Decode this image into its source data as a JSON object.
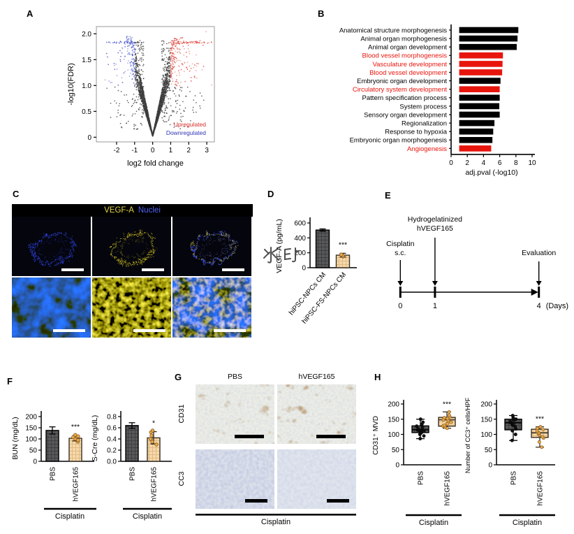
{
  "watermark": "水印",
  "panels": {
    "A": {
      "label": "A"
    },
    "B": {
      "label": "B"
    },
    "C": {
      "label": "C",
      "header_marker": "VEGF-A",
      "header_counter": "Nuclei",
      "marker_color": "#e3d44b",
      "counter_color": "#4f63f2"
    },
    "D": {
      "label": "D"
    },
    "E": {
      "label": "E"
    },
    "F": {
      "label": "F"
    },
    "G": {
      "label": "G",
      "columns": [
        "PBS",
        "hVEGF165"
      ],
      "rows": [
        "CD31",
        "CC3"
      ],
      "group_label": "Cisplatin"
    },
    "H": {
      "label": "H"
    }
  },
  "chart_data": [
    {
      "id": "volcano",
      "type": "scatter",
      "xlabel": "log2 fold change",
      "ylabel": "-log10(FDR)",
      "xlim": [
        -3.12,
        3.42
      ],
      "ylim": [
        0,
        2.1
      ],
      "xticks": [
        "-2",
        "-1",
        "0",
        "1",
        "2",
        "3"
      ],
      "yticks": [
        "0",
        "0.5",
        "1.0",
        "1.5",
        "2.0"
      ],
      "legend": [
        {
          "label": "Upregulated",
          "color": "#d62f28"
        },
        {
          "label": "Downregulated",
          "color": "#2e36b4"
        }
      ],
      "point_color": "#3d3d3d",
      "up_threshold_log2fc": 1,
      "down_threshold_log2fc": -1,
      "sig_threshold_y": 1.0
    },
    {
      "id": "go_terms",
      "type": "bar",
      "orientation": "horizontal",
      "xlabel": "adj.pval (-log10)",
      "xticks": [
        0,
        2,
        4,
        6,
        8,
        10
      ],
      "xlim": [
        0,
        10
      ],
      "bar_start": 1,
      "categories": [
        "Anatomical structure morphogenesis",
        "Animal organ morphogenesis",
        "Animal organ development",
        "Blood vessel morphogenesis",
        "Vasculature development",
        "Blood vessel development",
        "Embryonic organ development",
        "Circulatory system development",
        "Pattern specification process",
        "System process",
        "Sensory organ development",
        "Regionalization",
        "Response to hypoxia",
        "Embryonic organ morphogenesis",
        "Angiogenesis"
      ],
      "values": [
        8.3,
        8.2,
        8.1,
        6.4,
        6.35,
        6.3,
        6.1,
        6.0,
        6.0,
        5.95,
        6.0,
        5.35,
        5.2,
        5.1,
        4.95
      ],
      "highlighted": [
        false,
        false,
        false,
        true,
        true,
        true,
        false,
        true,
        false,
        false,
        false,
        false,
        false,
        false,
        true
      ],
      "bar_color": "#000000",
      "highlight_color": "#e8150d"
    },
    {
      "id": "vegfa_elisa",
      "type": "bar",
      "ylabel": "VEGF-A (pg/mL)",
      "yticks": [
        "0",
        "200",
        "400",
        "600"
      ],
      "ylim": [
        0,
        600
      ],
      "categories": [
        "hiPSC-NPCs CM",
        "hiPSC-FS-NPCs CM"
      ],
      "values": [
        505,
        168
      ],
      "errors": [
        15,
        25
      ],
      "points": [
        [],
        [
          150,
          163,
          177
        ]
      ],
      "significance": "***",
      "sig_on_index": 1,
      "bar_styles": [
        "dark",
        "tan"
      ]
    },
    {
      "id": "timeline",
      "type": "timeline",
      "events": [
        {
          "lines": [
            "Cisplatin",
            "s.c."
          ],
          "day": 0
        },
        {
          "lines": [
            "Hydrogelatinized",
            "hVEGF165"
          ],
          "day": 1
        },
        {
          "lines": [
            "Evaluation"
          ],
          "day": 4
        }
      ],
      "ticks": [
        "0",
        "1",
        "4"
      ],
      "axis_suffix": "(Days)",
      "days_total": 4
    },
    {
      "id": "bun",
      "type": "bar",
      "ylabel": "BUN (mg/dL)",
      "yticks": [
        "0",
        "50",
        "100",
        "150",
        "200"
      ],
      "ylim": [
        0,
        200
      ],
      "categories": [
        "PBS",
        "hVEGF165"
      ],
      "values": [
        138,
        103
      ],
      "errors": [
        16,
        12
      ],
      "points": [
        [],
        [
          88,
          95,
          100,
          108,
          112,
          118
        ]
      ],
      "significance": "***",
      "sig_on_index": 1,
      "bar_styles": [
        "dark",
        "tan"
      ],
      "group_label": "Cisplatin"
    },
    {
      "id": "scre",
      "type": "bar",
      "ylabel": "S-Cre (mg/dL)",
      "yticks": [
        "0.0",
        "0.2",
        "0.4",
        "0.6",
        "0.8"
      ],
      "ylim": [
        0,
        0.8
      ],
      "categories": [
        "PBS",
        "hVEGF165"
      ],
      "values": [
        0.64,
        0.42
      ],
      "errors": [
        0.05,
        0.11
      ],
      "points": [
        [],
        [
          0.3,
          0.35,
          0.4,
          0.46,
          0.52,
          0.55
        ]
      ],
      "significance": "*",
      "sig_on_index": 1,
      "bar_styles": [
        "dark",
        "tan"
      ],
      "group_label": "Cisplatin"
    },
    {
      "id": "cd31_mvd",
      "type": "box",
      "ylabel": "CD31⁺ MVD",
      "yticks": [
        "0",
        "50",
        "100",
        "150",
        "200"
      ],
      "ylim": [
        0,
        200
      ],
      "categories": [
        "PBS",
        "hVEGF165"
      ],
      "boxes": [
        {
          "min": 86,
          "q1": 106,
          "median": 115,
          "q3": 128,
          "max": 150
        },
        {
          "min": 120,
          "q1": 127,
          "median": 148,
          "q3": 156,
          "max": 174
        }
      ],
      "points": [
        [
          86,
          95,
          100,
          105,
          108,
          110,
          113,
          115,
          118,
          122,
          127,
          133,
          140,
          150
        ],
        [
          120,
          124,
          127,
          130,
          135,
          140,
          145,
          148,
          152,
          155,
          158,
          163,
          174
        ]
      ],
      "significance": "***",
      "sig_on_index": 1,
      "box_styles": [
        "dark",
        "tan"
      ],
      "group_label": "Cisplatin"
    },
    {
      "id": "cc3_count",
      "type": "box",
      "ylabel": "Number of CC3⁺ cells/HPF",
      "yticks": [
        "0",
        "50",
        "100",
        "150",
        "200"
      ],
      "ylim": [
        0,
        200
      ],
      "categories": [
        "PBS",
        "hVEGF165"
      ],
      "boxes": [
        {
          "min": 80,
          "q1": 115,
          "median": 138,
          "q3": 150,
          "max": 162
        },
        {
          "min": 58,
          "q1": 90,
          "median": 105,
          "q3": 117,
          "max": 125
        }
      ],
      "points": [
        [
          80,
          100,
          112,
          118,
          125,
          130,
          135,
          138,
          142,
          147,
          150,
          155,
          162
        ],
        [
          58,
          75,
          88,
          92,
          97,
          102,
          105,
          108,
          112,
          116,
          120,
          125
        ]
      ],
      "significance": "***",
      "sig_on_index": 1,
      "box_styles": [
        "dark",
        "tan"
      ],
      "group_label": "Cisplatin"
    }
  ]
}
